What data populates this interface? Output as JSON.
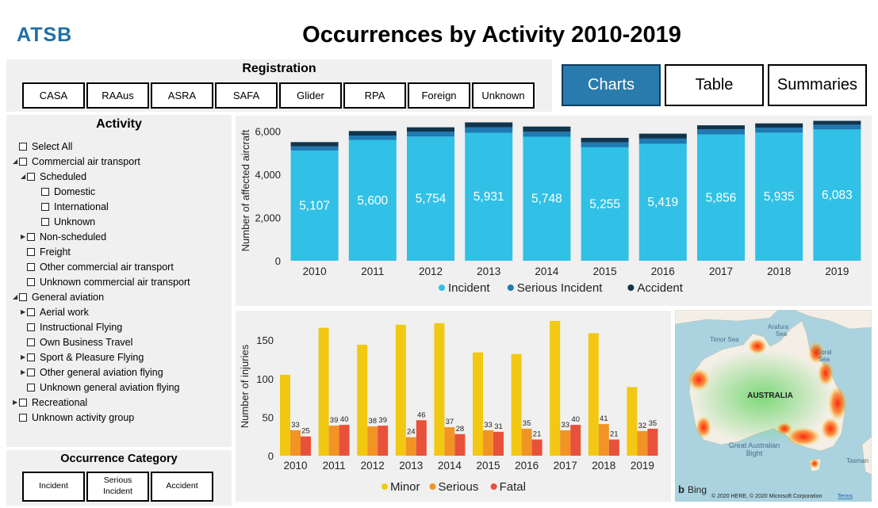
{
  "header": {
    "logo": "ATSB",
    "title": "Occurrences by Activity 2010-2019"
  },
  "registration": {
    "title": "Registration",
    "buttons": [
      "CASA",
      "RAAus",
      "ASRA",
      "SAFA",
      "Glider",
      "RPA",
      "Foreign",
      "Unknown"
    ]
  },
  "nav": {
    "charts": "Charts",
    "table": "Table",
    "summaries": "Summaries"
  },
  "activity": {
    "title": "Activity",
    "items": [
      {
        "label": "Select All",
        "level": 0,
        "expander": ""
      },
      {
        "label": "Commercial air transport",
        "level": 0,
        "expander": "◢"
      },
      {
        "label": "Scheduled",
        "level": 1,
        "expander": "◢"
      },
      {
        "label": "Domestic",
        "level": 2,
        "expander": ""
      },
      {
        "label": "International",
        "level": 2,
        "expander": ""
      },
      {
        "label": "Unknown",
        "level": 2,
        "expander": ""
      },
      {
        "label": "Non-scheduled",
        "level": 1,
        "expander": "▶"
      },
      {
        "label": "Freight",
        "level": 1,
        "expander": ""
      },
      {
        "label": "Other commercial air transport",
        "level": 1,
        "expander": ""
      },
      {
        "label": "Unknown commercial air transport",
        "level": 1,
        "expander": ""
      },
      {
        "label": "General aviation",
        "level": 0,
        "expander": "◢"
      },
      {
        "label": "Aerial work",
        "level": 1,
        "expander": "▶"
      },
      {
        "label": "Instructional Flying",
        "level": 1,
        "expander": ""
      },
      {
        "label": "Own Business Travel",
        "level": 1,
        "expander": ""
      },
      {
        "label": "Sport & Pleasure Flying",
        "level": 1,
        "expander": "▶"
      },
      {
        "label": "Other general aviation flying",
        "level": 1,
        "expander": "▶"
      },
      {
        "label": "Unknown general aviation flying",
        "level": 1,
        "expander": ""
      },
      {
        "label": "Recreational",
        "level": 0,
        "expander": "▶"
      },
      {
        "label": "Unknown activity group",
        "level": 0,
        "expander": ""
      }
    ]
  },
  "occurrence_category": {
    "title": "Occurrence Category",
    "buttons": [
      "Incident",
      "Serious Incident",
      "Accident"
    ]
  },
  "chart_data": [
    {
      "type": "bar",
      "stacked": true,
      "title": "",
      "ylabel": "Number of affected aircraft",
      "xlabel": "",
      "ylim": [
        0,
        6500
      ],
      "yticks": [
        0,
        2000,
        4000,
        6000
      ],
      "ytick_labels": [
        "0",
        "2,000",
        "4,000",
        "6,000"
      ],
      "categories": [
        "2010",
        "2011",
        "2012",
        "2013",
        "2014",
        "2015",
        "2016",
        "2017",
        "2018",
        "2019"
      ],
      "series": [
        {
          "name": "Incident",
          "color": "#31c0e6",
          "values": [
            5107,
            5600,
            5754,
            5931,
            5748,
            5255,
            5419,
            5856,
            5935,
            6083
          ],
          "labels": [
            "5,107",
            "5,600",
            "5,754",
            "5,931",
            "5,748",
            "5,255",
            "5,419",
            "5,856",
            "5,935",
            "6,083"
          ]
        },
        {
          "name": "Serious Incident",
          "color": "#1f79b2",
          "values": [
            190,
            200,
            230,
            250,
            230,
            230,
            240,
            230,
            230,
            220
          ]
        },
        {
          "name": "Accident",
          "color": "#10354c",
          "values": [
            200,
            210,
            200,
            230,
            240,
            210,
            230,
            190,
            200,
            180
          ]
        }
      ],
      "legend": "bottom"
    },
    {
      "type": "bar",
      "grouped": true,
      "title": "",
      "ylabel": "Number of injuries",
      "xlabel": "",
      "ylim": [
        0,
        180
      ],
      "yticks": [
        0,
        50,
        100,
        150
      ],
      "ytick_labels": [
        "0",
        "50",
        "100",
        "150"
      ],
      "categories": [
        "2010",
        "2011",
        "2012",
        "2013",
        "2014",
        "2015",
        "2016",
        "2017",
        "2018",
        "2019"
      ],
      "series": [
        {
          "name": "Minor",
          "color": "#f2c812",
          "values": [
            105,
            166,
            144,
            170,
            172,
            134,
            132,
            175,
            159,
            89
          ],
          "labels": null
        },
        {
          "name": "Serious",
          "color": "#f29425",
          "values": [
            33,
            39,
            38,
            24,
            37,
            33,
            35,
            33,
            41,
            32
          ],
          "labels": [
            "33",
            "39",
            "38",
            "24",
            "37",
            "33",
            "35",
            "33",
            "41",
            "32"
          ]
        },
        {
          "name": "Fatal",
          "color": "#e8513a",
          "values": [
            25,
            40,
            39,
            46,
            28,
            31,
            21,
            40,
            21,
            35
          ],
          "labels": [
            "25",
            "40",
            "39",
            "46",
            "28",
            "31",
            "21",
            "40",
            "21",
            "35"
          ]
        }
      ],
      "legend": "bottom"
    }
  ],
  "map": {
    "labels": {
      "country": "AUSTRALIA",
      "timor": "Timor Sea",
      "arafura1": "Arafura",
      "arafura2": "Sea",
      "coral1": "Coral",
      "coral2": "Sea",
      "bight1": "Great Australian",
      "bight2": "Bight",
      "tasman": "Tasman"
    },
    "provider": "Bing",
    "copyright": "© 2020 HERE, © 2020 Microsoft Corporation",
    "terms": "Terms",
    "land_color": "#f3efe6",
    "water_color": "#aad3df"
  }
}
